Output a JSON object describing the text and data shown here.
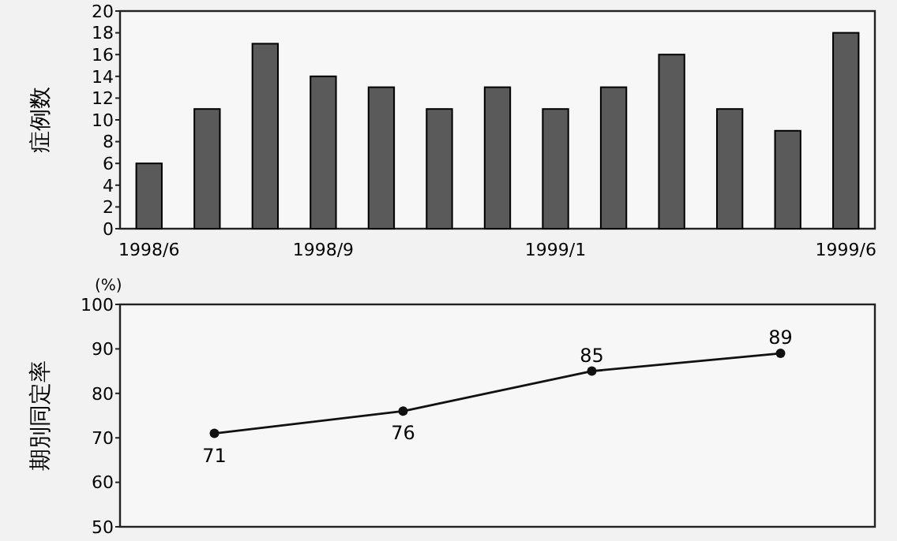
{
  "chart_data": [
    {
      "type": "bar",
      "ylabel": "症例数",
      "categories": [
        "1998/6",
        null,
        null,
        "1998/9",
        null,
        null,
        null,
        "1999/1",
        null,
        null,
        null,
        null,
        "1999/6"
      ],
      "values": [
        6,
        11,
        17,
        14,
        13,
        11,
        13,
        11,
        13,
        16,
        11,
        9,
        18
      ],
      "color": "#5a5a5a",
      "ylim": [
        0,
        20
      ],
      "yticks": [
        0,
        2,
        4,
        6,
        8,
        10,
        12,
        14,
        16,
        18,
        20
      ],
      "grid": false
    },
    {
      "type": "line",
      "ylabel": "期別同定率",
      "annotations": [
        "(%)"
      ],
      "categories": [
        null,
        null,
        null,
        null
      ],
      "values": [
        71,
        76,
        85,
        89
      ],
      "color": "#111111",
      "ylim": [
        50,
        100
      ],
      "yticks": [
        50,
        60,
        70,
        80,
        90,
        100
      ],
      "tick_labels": "y",
      "marker": "circle",
      "data_labels": true,
      "grid": false
    }
  ]
}
